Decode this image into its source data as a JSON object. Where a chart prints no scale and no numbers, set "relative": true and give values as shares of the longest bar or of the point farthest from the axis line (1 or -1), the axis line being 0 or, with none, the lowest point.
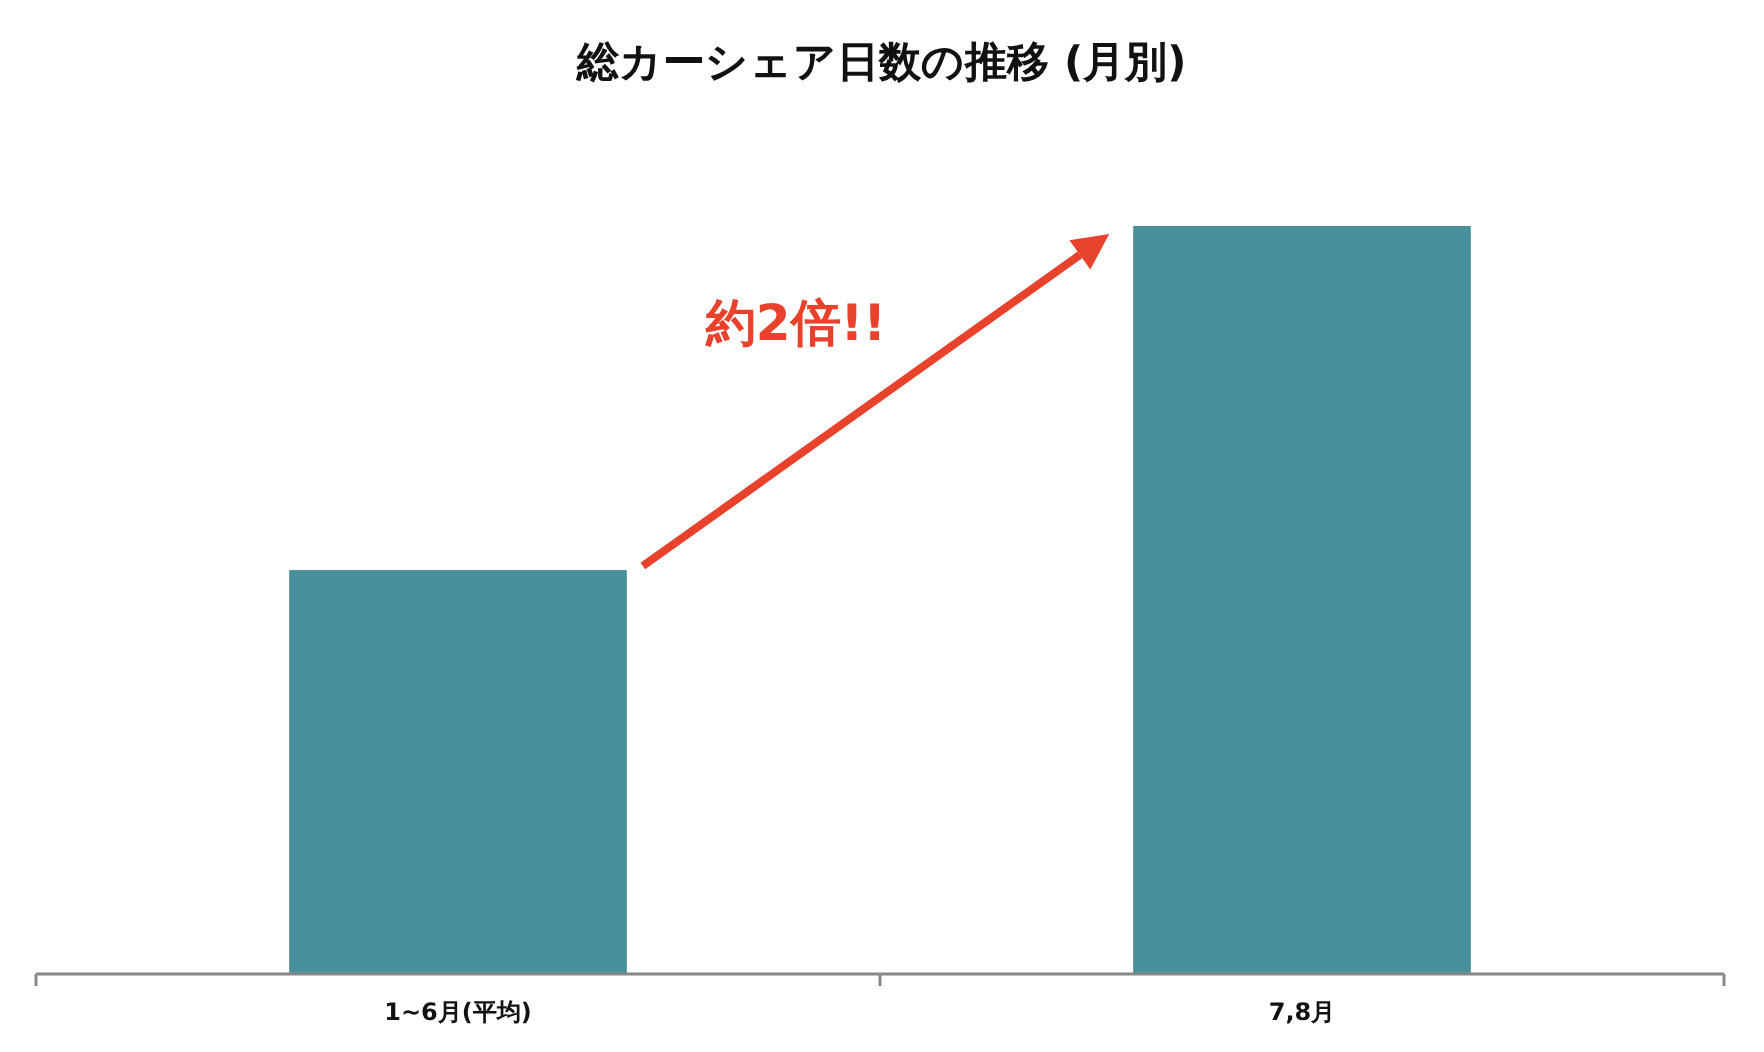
{
  "chart_data": {
    "type": "bar",
    "title": "総カーシェア日数の推移 (月別)",
    "categories": [
      "1~6月(平均)",
      "7,8月"
    ],
    "values": [
      0.54,
      1
    ],
    "color": "#4a8f9c",
    "relative": true,
    "annotations": [
      "約2倍!!"
    ]
  }
}
